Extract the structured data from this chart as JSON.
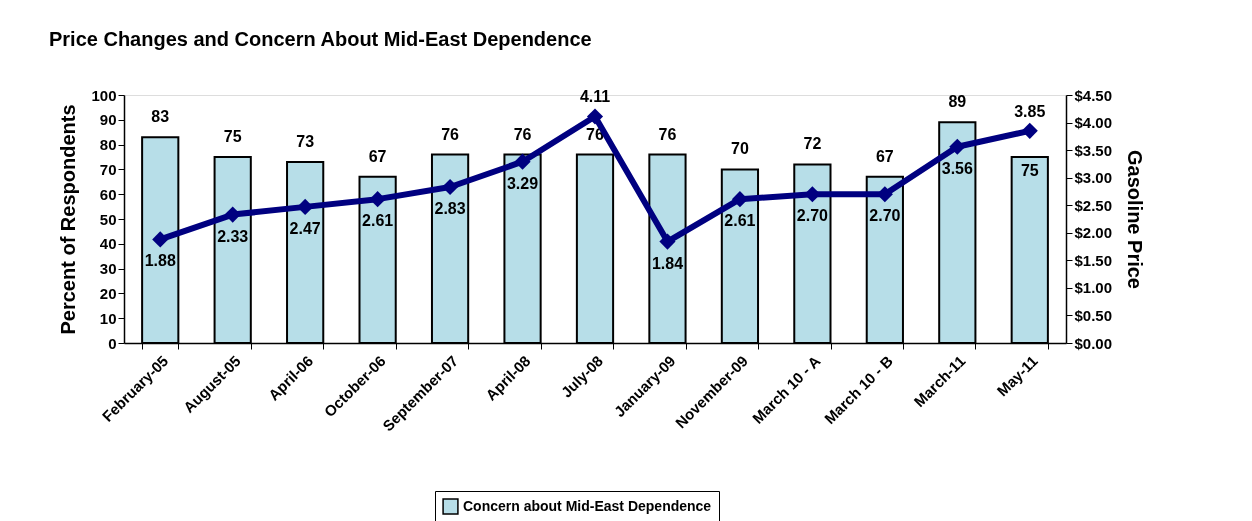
{
  "chart_data": {
    "type": "bar",
    "title": "Price Changes and Concern About Mid-East Dependence",
    "ylabel": "Percent of Respondents",
    "y2label": "Gasoline Price",
    "categories": [
      "February-05",
      "August-05",
      "April-06",
      "October-06",
      "September-07",
      "April-08",
      "July-08",
      "January-09",
      "November-09",
      "March 10 - A",
      "March 10 - B",
      "March-11",
      "May-11"
    ],
    "series": [
      {
        "name": "Concern about Mid-East Dependence",
        "color": "#b7dee8",
        "values": [
          83,
          75,
          73,
          67,
          76,
          76,
          76,
          76,
          70,
          72,
          67,
          89,
          75
        ]
      },
      {
        "type": "line",
        "axis": "y2",
        "color": "#000080",
        "values": [
          1.88,
          2.33,
          2.47,
          2.61,
          2.83,
          3.29,
          4.11,
          1.84,
          2.61,
          2.7,
          2.7,
          3.56,
          3.85
        ],
        "value_labels": [
          "1.88",
          "2.33",
          "2.47",
          "2.61",
          "2.83",
          "3.29",
          "4.11",
          "1.84",
          "2.61",
          "2.70",
          "2.70",
          "3.56",
          "3.85"
        ]
      }
    ],
    "ylim": [
      0,
      100
    ],
    "yticks": [
      0,
      10,
      20,
      30,
      40,
      50,
      60,
      70,
      80,
      90,
      100
    ],
    "y2lim": [
      0,
      4.5
    ],
    "y2ticks": [
      {
        "value": 0,
        "label": "$0.00"
      },
      {
        "value": 0.5,
        "label": "$0.50"
      },
      {
        "value": 1,
        "label": "$1.00"
      },
      {
        "value": 1.5,
        "label": "$1.50"
      },
      {
        "value": 2,
        "label": "$2.00"
      },
      {
        "value": 2.5,
        "label": "$2.50"
      },
      {
        "value": 3,
        "label": "$3.00"
      },
      {
        "value": 3.5,
        "label": "$3.50"
      },
      {
        "value": 4,
        "label": "$4.00"
      },
      {
        "value": 4.5,
        "label": "$4.50"
      }
    ],
    "data_labels": true,
    "legend": "bottom",
    "grid": false,
    "marker": "diamond",
    "line_style": "solid"
  }
}
